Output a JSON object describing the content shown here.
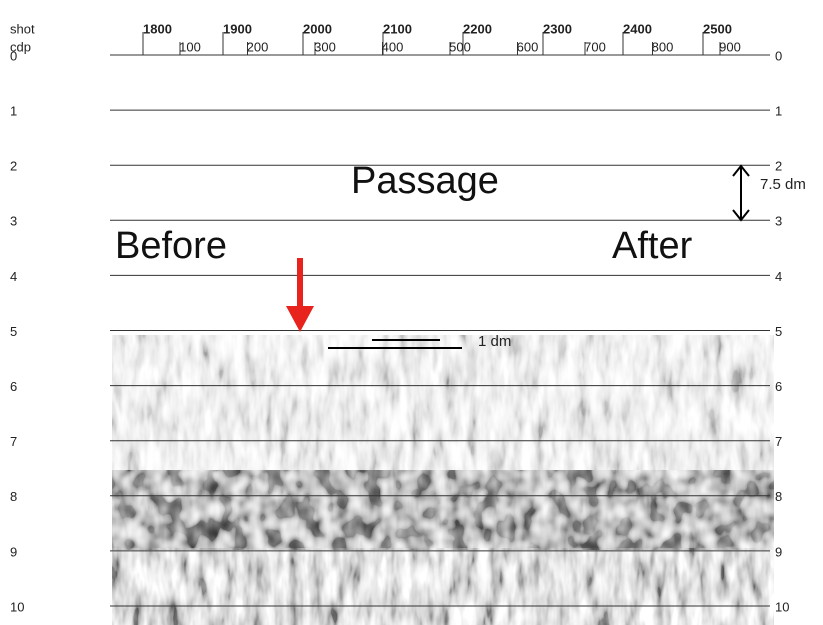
{
  "axis": {
    "shot_label": "shot",
    "cdp_label": "cdp",
    "shots": [
      1800,
      1900,
      2000,
      2100,
      2200,
      2300,
      2400,
      2500
    ],
    "cdps": [
      100,
      200,
      300,
      400,
      500,
      600,
      700,
      800,
      900
    ],
    "depths": [
      0,
      1,
      2,
      3,
      4,
      5,
      6,
      7,
      8,
      9,
      10
    ]
  },
  "annotations": {
    "passage": "Passage",
    "before": "Before",
    "after": "After",
    "height": "7.5 dm",
    "scale": "1 dm"
  }
}
